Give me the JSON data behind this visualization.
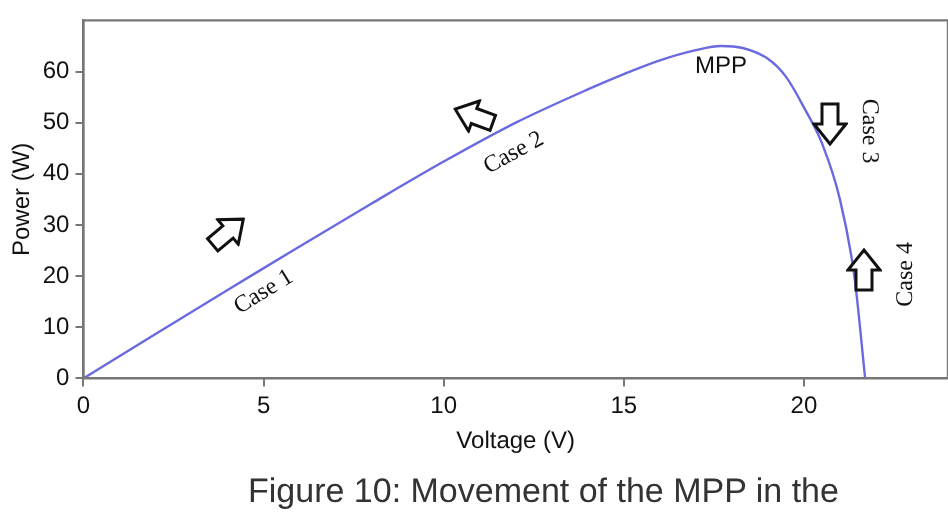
{
  "chart_data": {
    "type": "line",
    "xlabel": "Voltage (V)",
    "ylabel": "Power (W)",
    "x": [
      0,
      2,
      4,
      6,
      8,
      10,
      12,
      14,
      15,
      16,
      17,
      17.7,
      18.3,
      19,
      19.5,
      20,
      20.5,
      21,
      21.4,
      21.7
    ],
    "series": [
      {
        "color": "#6a6ae0",
        "values": [
          0,
          8.7,
          17.3,
          25.8,
          34.2,
          42.4,
          50,
          56.5,
          59.5,
          62.2,
          64.2,
          65,
          64.6,
          62.5,
          59,
          53,
          46,
          35,
          20,
          0
        ]
      }
    ],
    "xlim": [
      0,
      24
    ],
    "xticks": [
      0,
      5,
      10,
      15,
      20
    ],
    "ylim": [
      0,
      70
    ],
    "yticks": [
      0,
      10,
      20,
      30,
      40,
      50,
      60
    ],
    "grid": false,
    "legend": false,
    "marker": "none",
    "line_style": "solid",
    "annotations": [
      {
        "text": "MPP",
        "x": 17.7,
        "y": 65
      },
      {
        "text": "Case 1",
        "x": 5,
        "y": 21.6
      },
      {
        "text": "Case 2",
        "x": 11.5,
        "y": 48
      },
      {
        "text": "Case 3",
        "x": 20.6,
        "y": 46
      },
      {
        "text": "Case 4",
        "x": 21.5,
        "y": 18
      },
      "Figure 10: Movement of the MPP in the"
    ]
  }
}
